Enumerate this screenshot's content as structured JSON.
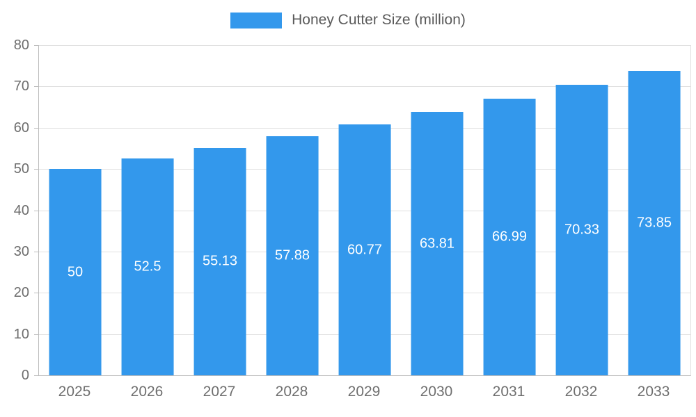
{
  "chart_data": {
    "type": "bar",
    "title": "",
    "series_name": "Honey Cutter Size (million)",
    "categories": [
      "2025",
      "2026",
      "2027",
      "2028",
      "2029",
      "2030",
      "2031",
      "2032",
      "2033"
    ],
    "values": [
      50,
      52.5,
      55.13,
      57.88,
      60.77,
      63.81,
      66.99,
      70.33,
      73.85
    ],
    "xlabel": "",
    "ylabel": "",
    "ylim": [
      0,
      80
    ],
    "ytick_step": 10,
    "yticks": [
      0,
      10,
      20,
      30,
      40,
      50,
      60,
      70,
      80
    ],
    "grid": true,
    "legend_position": "top",
    "value_labels_inside_bars": true,
    "colors": {
      "bar": "#3398EC",
      "value_label": "#FFFFFF",
      "axis_text": "#6E6E6E",
      "gridline": "#E0E0E0",
      "axis_line": "#BDBDBD",
      "legend_text": "#595959",
      "background": "#FFFFFF"
    }
  }
}
